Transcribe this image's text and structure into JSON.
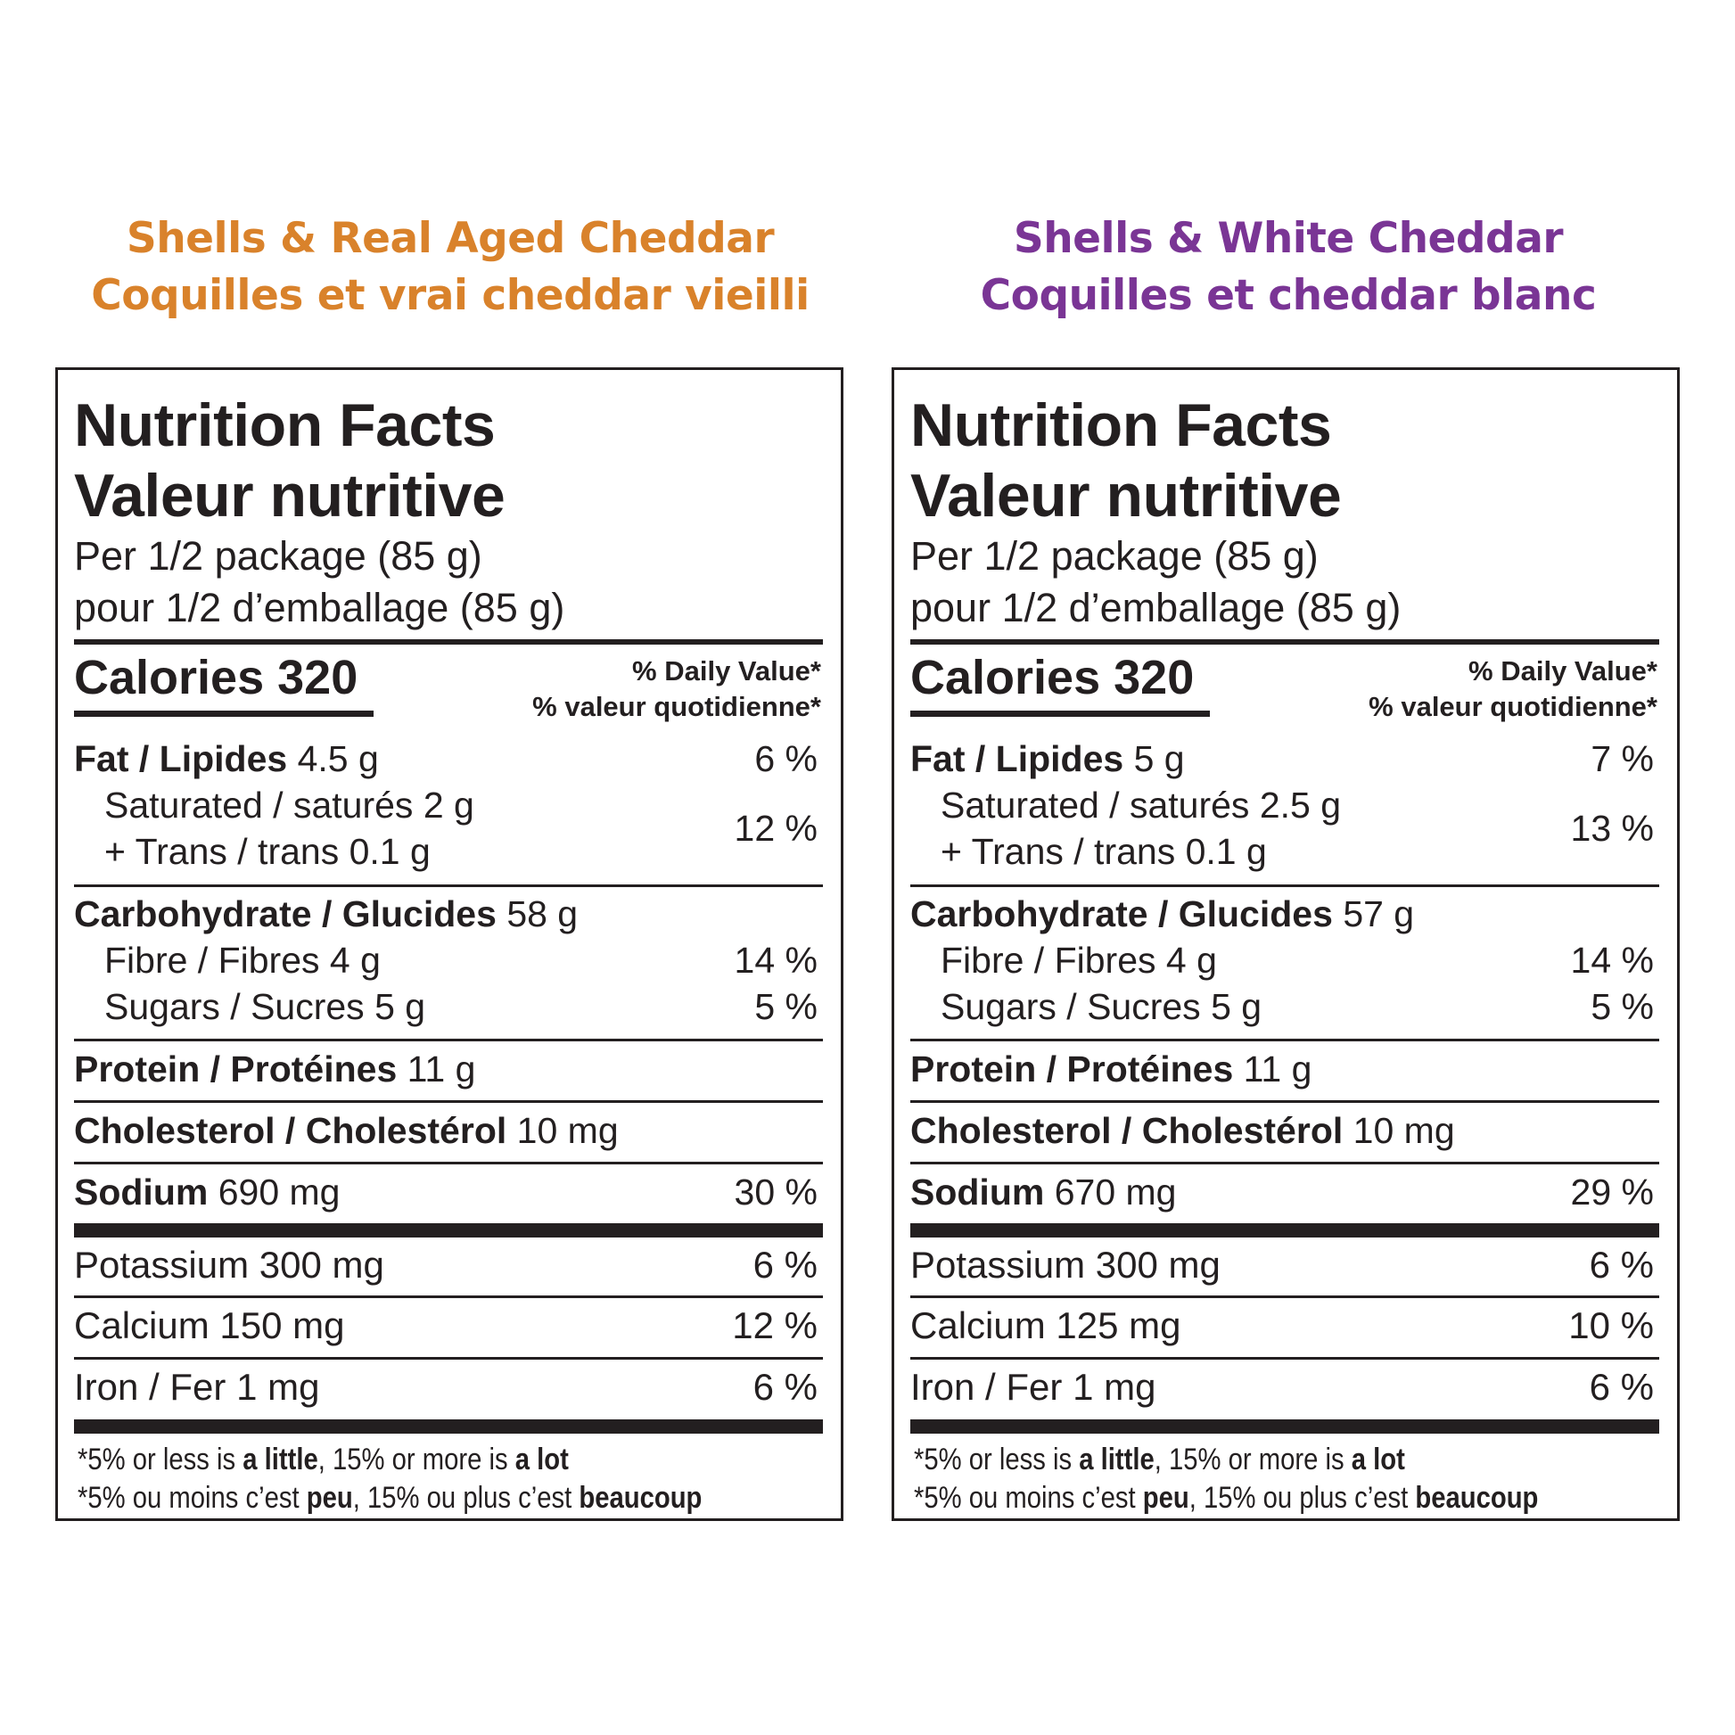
{
  "colors": {
    "left_title": "#d9822b",
    "right_title": "#7a3595",
    "text": "#231f20"
  },
  "labels": {
    "title_en": "Nutrition Facts",
    "title_fr": "Valeur nutritive",
    "serving_en": "Per 1/2 package (85 g)",
    "serving_fr": "pour 1/2 d’emballage (85 g)",
    "calories_label": "Calories",
    "dv_en": "% Daily Value*",
    "dv_fr": "% valeur quotidienne*",
    "fat": "Fat / Lipides",
    "saturated": "Saturated / saturés",
    "trans": "+ Trans / trans",
    "carb": "Carbohydrate / Glucides",
    "fibre": "Fibre / Fibres",
    "sugars": "Sugars / Sucres",
    "protein": "Protein / Protéines",
    "cholesterol": "Cholesterol / Cholestérol",
    "sodium": "Sodium",
    "potassium": "Potassium",
    "calcium": "Calcium",
    "iron": "Iron / Fer",
    "foot_en_1": "*5% or less is ",
    "foot_en_2": "a little",
    "foot_en_3": ", 15% or more is ",
    "foot_en_4": "a lot",
    "foot_fr_1": "*5% ou moins c’est ",
    "foot_fr_2": "peu",
    "foot_fr_3": ", 15% ou plus c’est ",
    "foot_fr_4": "beaucoup"
  },
  "left": {
    "title_en": "Shells & Real Aged Cheddar",
    "title_fr": "Coquilles et vrai cheddar vieilli",
    "calories": "320",
    "fat": "4.5 g",
    "fat_pct": "6 %",
    "saturated": "2 g",
    "trans": "0.1 g",
    "sat_trans_pct": "12 %",
    "carb": "58 g",
    "fibre": "4 g",
    "fibre_pct": "14 %",
    "sugars": "5 g",
    "sugars_pct": "5 %",
    "protein": "11 g",
    "cholesterol": "10 mg",
    "sodium": "690 mg",
    "sodium_pct": "30 %",
    "potassium": "300 mg",
    "potassium_pct": "6 %",
    "calcium": "150 mg",
    "calcium_pct": "12 %",
    "iron": "1 mg",
    "iron_pct": "6 %"
  },
  "right": {
    "title_en": "Shells & White Cheddar",
    "title_fr": "Coquilles et cheddar blanc",
    "calories": "320",
    "fat": "5 g",
    "fat_pct": "7 %",
    "saturated": "2.5 g",
    "trans": "0.1 g",
    "sat_trans_pct": "13 %",
    "carb": "57 g",
    "fibre": "4 g",
    "fibre_pct": "14 %",
    "sugars": "5 g",
    "sugars_pct": "5 %",
    "protein": "11 g",
    "cholesterol": "10 mg",
    "sodium": "670 mg",
    "sodium_pct": "29 %",
    "potassium": "300 mg",
    "potassium_pct": "6 %",
    "calcium": "125 mg",
    "calcium_pct": "10 %",
    "iron": "1 mg",
    "iron_pct": "6 %"
  }
}
